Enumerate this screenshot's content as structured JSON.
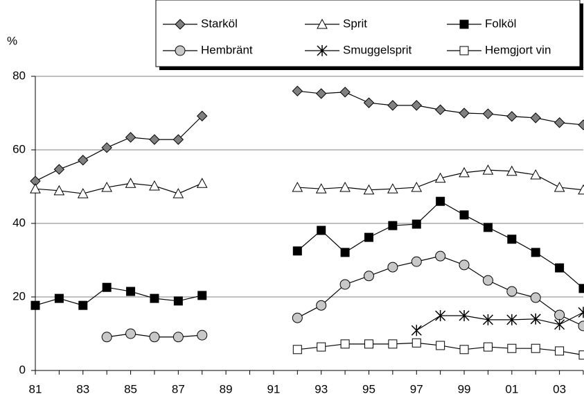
{
  "chart_data": {
    "type": "line",
    "ylabel": "%",
    "categories": [
      "81",
      null,
      "83",
      null,
      "85",
      null,
      "87",
      null,
      "89",
      null,
      "91",
      null,
      "93",
      null,
      "95",
      null,
      "97",
      null,
      "99",
      null,
      "01",
      null,
      "03",
      null
    ],
    "ylim": [
      0,
      80
    ],
    "yticks": [
      0,
      20,
      40,
      60,
      80
    ],
    "grid": true,
    "legend": "top-right",
    "series": [
      {
        "name": "Starköl",
        "color": "#808080",
        "marker": "diamond",
        "values": [
          51.5,
          54.7,
          57.2,
          60.6,
          63.4,
          62.8,
          62.8,
          69.2,
          null,
          null,
          null,
          76.0,
          75.3,
          75.7,
          72.8,
          72.1,
          72.1,
          70.9,
          70.0,
          69.8,
          69.1,
          68.7,
          67.4,
          66.8
        ]
      },
      {
        "name": "Sprit",
        "color": "#ffffff",
        "marker": "triangle",
        "values": [
          49.4,
          48.9,
          48.1,
          49.8,
          50.9,
          50.2,
          48.1,
          50.9,
          null,
          null,
          null,
          49.8,
          49.4,
          49.8,
          49.1,
          49.4,
          49.8,
          52.3,
          53.8,
          54.5,
          54.2,
          53.2,
          49.8,
          49.1
        ]
      },
      {
        "name": "Folköl",
        "color": "#000000",
        "marker": "square",
        "values": [
          17.7,
          19.6,
          17.7,
          22.6,
          21.5,
          19.6,
          18.9,
          20.4,
          null,
          null,
          null,
          32.5,
          38.1,
          32.1,
          36.2,
          39.4,
          39.8,
          46.0,
          42.3,
          38.9,
          35.7,
          32.1,
          27.9,
          22.3
        ]
      },
      {
        "name": "Hembränt",
        "color": "#c8c8c8",
        "marker": "circle",
        "values": [
          null,
          null,
          null,
          9.1,
          10.0,
          9.1,
          9.1,
          9.6,
          null,
          null,
          null,
          14.3,
          17.7,
          23.4,
          25.7,
          28.1,
          29.6,
          31.1,
          28.7,
          24.5,
          21.5,
          19.8,
          15.1,
          12.1
        ]
      },
      {
        "name": "Smuggelsprit",
        "color": "#000000",
        "marker": "star",
        "values": [
          null,
          null,
          null,
          null,
          null,
          null,
          null,
          null,
          null,
          null,
          null,
          null,
          null,
          null,
          null,
          null,
          10.9,
          14.9,
          14.9,
          13.8,
          13.8,
          14.0,
          12.5,
          15.8
        ]
      },
      {
        "name": "Hemgjort vin",
        "color": "#ffffff",
        "marker": "square",
        "values": [
          null,
          null,
          null,
          null,
          null,
          null,
          null,
          null,
          null,
          null,
          null,
          5.7,
          6.4,
          7.2,
          7.2,
          7.2,
          7.5,
          6.8,
          5.7,
          6.4,
          6.0,
          6.0,
          5.3,
          4.2
        ]
      }
    ]
  }
}
